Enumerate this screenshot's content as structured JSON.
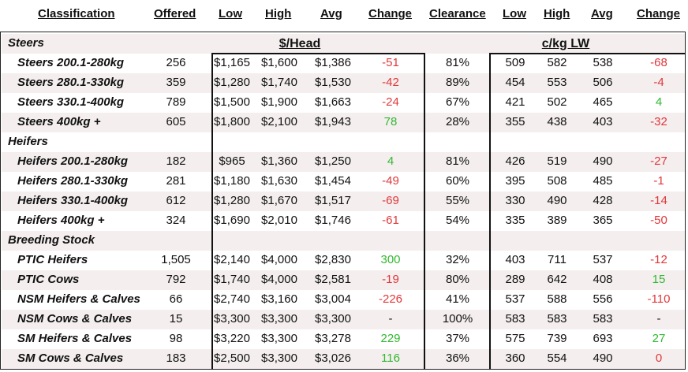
{
  "headers": [
    "Classification",
    "Offered",
    "Low",
    "High",
    "Avg",
    "Change",
    "Clearance",
    "Low",
    "High",
    "Avg",
    "Change"
  ],
  "groups": {
    "head": "$/Head",
    "kg": "c/kg LW"
  },
  "rows": [
    {
      "type": "section",
      "label": "Steers"
    },
    {
      "type": "data",
      "label": "Steers 200.1-280kg",
      "offered": "256",
      "low": "$1,165",
      "high": "$1,600",
      "avg": "$1,386",
      "change": "-51",
      "change_sign": "neg",
      "clearance": "81%",
      "kg_low": "509",
      "kg_high": "582",
      "kg_avg": "538",
      "kg_change": "-68",
      "kg_change_sign": "neg"
    },
    {
      "type": "data",
      "label": "Steers 280.1-330kg",
      "offered": "359",
      "low": "$1,280",
      "high": "$1,740",
      "avg": "$1,530",
      "change": "-42",
      "change_sign": "neg",
      "clearance": "89%",
      "kg_low": "454",
      "kg_high": "553",
      "kg_avg": "506",
      "kg_change": "-4",
      "kg_change_sign": "neg"
    },
    {
      "type": "data",
      "label": "Steers 330.1-400kg",
      "offered": "789",
      "low": "$1,500",
      "high": "$1,900",
      "avg": "$1,663",
      "change": "-24",
      "change_sign": "neg",
      "clearance": "67%",
      "kg_low": "421",
      "kg_high": "502",
      "kg_avg": "465",
      "kg_change": "4",
      "kg_change_sign": "pos"
    },
    {
      "type": "data",
      "label": "Steers 400kg +",
      "offered": "605",
      "low": "$1,800",
      "high": "$2,100",
      "avg": "$1,943",
      "change": "78",
      "change_sign": "pos",
      "clearance": "28%",
      "kg_low": "355",
      "kg_high": "438",
      "kg_avg": "403",
      "kg_change": "-32",
      "kg_change_sign": "neg"
    },
    {
      "type": "section",
      "label": "Heifers"
    },
    {
      "type": "data",
      "label": "Heifers 200.1-280kg",
      "offered": "182",
      "low": "$965",
      "high": "$1,360",
      "avg": "$1,250",
      "change": "4",
      "change_sign": "pos",
      "clearance": "81%",
      "kg_low": "426",
      "kg_high": "519",
      "kg_avg": "490",
      "kg_change": "-27",
      "kg_change_sign": "neg"
    },
    {
      "type": "data",
      "label": "Heifers 280.1-330kg",
      "offered": "281",
      "low": "$1,180",
      "high": "$1,630",
      "avg": "$1,454",
      "change": "-49",
      "change_sign": "neg",
      "clearance": "60%",
      "kg_low": "395",
      "kg_high": "508",
      "kg_avg": "485",
      "kg_change": "-1",
      "kg_change_sign": "neg"
    },
    {
      "type": "data",
      "label": "Heifers 330.1-400kg",
      "offered": "612",
      "low": "$1,280",
      "high": "$1,670",
      "avg": "$1,517",
      "change": "-69",
      "change_sign": "neg",
      "clearance": "55%",
      "kg_low": "330",
      "kg_high": "490",
      "kg_avg": "428",
      "kg_change": "-14",
      "kg_change_sign": "neg"
    },
    {
      "type": "data",
      "label": "Heifers 400kg +",
      "offered": "324",
      "low": "$1,690",
      "high": "$2,010",
      "avg": "$1,746",
      "change": "-61",
      "change_sign": "neg",
      "clearance": "54%",
      "kg_low": "335",
      "kg_high": "389",
      "kg_avg": "365",
      "kg_change": "-50",
      "kg_change_sign": "neg"
    },
    {
      "type": "section",
      "label": "Breeding Stock"
    },
    {
      "type": "data",
      "label": "PTIC Heifers",
      "offered": "1,505",
      "low": "$2,140",
      "high": "$4,000",
      "avg": "$2,830",
      "change": "300",
      "change_sign": "pos",
      "clearance": "32%",
      "kg_low": "403",
      "kg_high": "711",
      "kg_avg": "537",
      "kg_change": "-12",
      "kg_change_sign": "neg"
    },
    {
      "type": "data",
      "label": "PTIC Cows",
      "offered": "792",
      "low": "$1,740",
      "high": "$4,000",
      "avg": "$2,581",
      "change": "-19",
      "change_sign": "neg",
      "clearance": "80%",
      "kg_low": "289",
      "kg_high": "642",
      "kg_avg": "408",
      "kg_change": "15",
      "kg_change_sign": "pos"
    },
    {
      "type": "data",
      "label": "NSM Heifers & Calves",
      "offered": "66",
      "low": "$2,740",
      "high": "$3,160",
      "avg": "$3,004",
      "change": "-226",
      "change_sign": "neg",
      "clearance": "41%",
      "kg_low": "537",
      "kg_high": "588",
      "kg_avg": "556",
      "kg_change": "-110",
      "kg_change_sign": "neg"
    },
    {
      "type": "data",
      "label": "NSM Cows & Calves",
      "offered": "15",
      "low": "$3,300",
      "high": "$3,300",
      "avg": "$3,300",
      "change": "-",
      "change_sign": "neu",
      "clearance": "100%",
      "kg_low": "583",
      "kg_high": "583",
      "kg_avg": "583",
      "kg_change": "-",
      "kg_change_sign": "neu"
    },
    {
      "type": "data",
      "label": "SM Heifers & Calves",
      "offered": "98",
      "low": "$3,220",
      "high": "$3,300",
      "avg": "$3,278",
      "change": "229",
      "change_sign": "pos",
      "clearance": "37%",
      "kg_low": "575",
      "kg_high": "739",
      "kg_avg": "693",
      "kg_change": "27",
      "kg_change_sign": "pos"
    },
    {
      "type": "data",
      "label": "SM Cows & Calves",
      "offered": "183",
      "low": "$2,500",
      "high": "$3,300",
      "avg": "$3,026",
      "change": "116",
      "change_sign": "pos",
      "clearance": "36%",
      "kg_low": "360",
      "kg_high": "554",
      "kg_avg": "490",
      "kg_change": "0",
      "kg_change_sign": "neg"
    }
  ]
}
